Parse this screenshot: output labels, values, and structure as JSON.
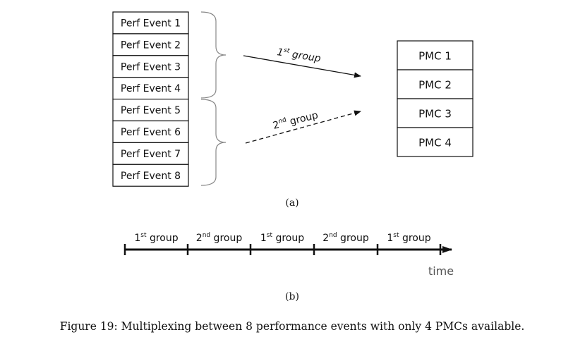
{
  "perf_events": [
    "Perf Event 1",
    "Perf Event 2",
    "Perf Event 3",
    "Perf Event 4",
    "Perf Event 5",
    "Perf Event 6",
    "Perf Event 7",
    "Perf Event 8"
  ],
  "pmcs": [
    "PMC 1",
    "PMC 2",
    "PMC 3",
    "PMC 4"
  ],
  "group1_label": {
    "prefix": "1",
    "sup": "st",
    "suffix": " group"
  },
  "group2_label": {
    "prefix": "2",
    "sup": "nd",
    "suffix": " group"
  },
  "subfig_a_label": "(a)",
  "subfig_b_label": "(b)",
  "timeline": {
    "segments": [
      {
        "prefix": "1",
        "sup": "st",
        "suffix": " group"
      },
      {
        "prefix": "2",
        "sup": "nd",
        "suffix": " group"
      },
      {
        "prefix": "1",
        "sup": "st",
        "suffix": " group"
      },
      {
        "prefix": "2",
        "sup": "nd",
        "suffix": " group"
      },
      {
        "prefix": "1",
        "sup": "st",
        "suffix": " group"
      }
    ],
    "axis_label": "time"
  },
  "caption": "Figure 19: Multiplexing between 8 performance events with only 4 PMCs available.",
  "colors": {
    "line": "#111111",
    "brace": "#888888",
    "time_label": "#555555"
  }
}
